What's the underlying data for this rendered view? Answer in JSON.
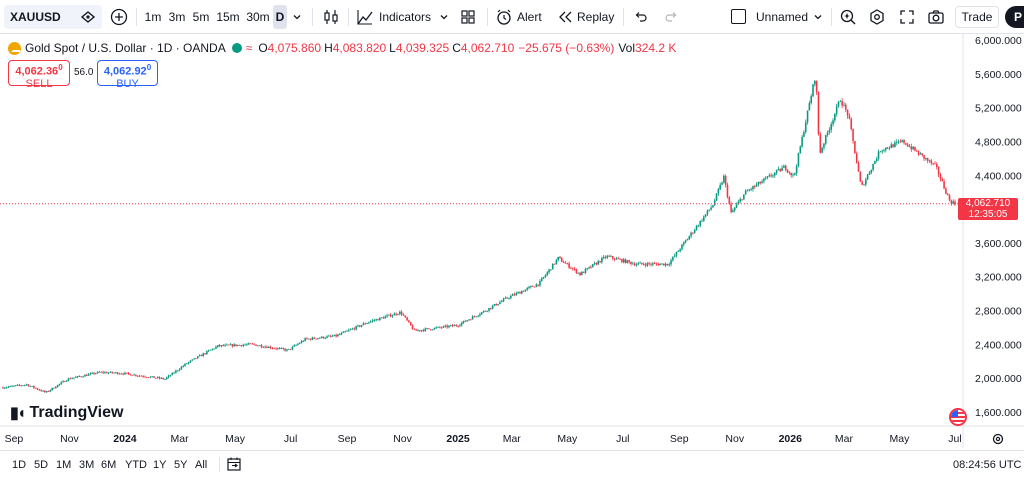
{
  "toolbar": {
    "symbol": "XAUUSD",
    "intervals": [
      "1m",
      "3m",
      "5m",
      "15m",
      "30m",
      "D"
    ],
    "active_interval": "D",
    "indicators_label": "Indicators",
    "alert_label": "Alert",
    "replay_label": "Replay",
    "layout_name": "Unnamed",
    "trade_label": "Trade",
    "publish_label": "P"
  },
  "legend": {
    "title": "Gold Spot / U.S. Dollar · 1D · OANDA",
    "wave": "≈",
    "open_label": "O",
    "open": "4,075.860",
    "high_label": "H",
    "high": "4,083.820",
    "low_label": "L",
    "low": "4,039.325",
    "close_label": "C",
    "close": "4,062.710",
    "change": "−25.675 (−0.63%)",
    "vol_label": "Vol",
    "vol": "324.2 K"
  },
  "trade": {
    "sell_price": "4,062.36",
    "sell_sup": "0",
    "sell_label": "SELL",
    "spread": "56.0",
    "buy_price": "4,062.92",
    "buy_sup": "0",
    "buy_label": "BUY"
  },
  "price_axis": {
    "labels": [
      "6,000.000",
      "5,600.000",
      "5,200.000",
      "4,800.000",
      "4,400.000",
      "3,600.000",
      "3,200.000",
      "2,800.000",
      "2,400.000",
      "2,000.000",
      "1,600.000"
    ],
    "current_price": "4,062.710",
    "countdown": "12:35:05"
  },
  "time_axis": {
    "labels": [
      "Sep",
      "Nov",
      "2024",
      "Mar",
      "May",
      "Jul",
      "Sep",
      "Nov",
      "2025",
      "Mar",
      "May",
      "Jul",
      "Sep",
      "Nov",
      "2026",
      "Mar",
      "May",
      "Jul"
    ]
  },
  "brand": "TradingView",
  "bottom": {
    "ranges": [
      "1D",
      "5D",
      "1M",
      "3M",
      "6M",
      "YTD",
      "1Y",
      "5Y",
      "All"
    ],
    "clock": "08:24:56 UTC"
  },
  "colors": {
    "up": "#089981",
    "down": "#f23645",
    "accent": "#2962ff"
  },
  "chart_data": {
    "type": "line",
    "x": [
      "2023-08-20",
      "2023-09-15",
      "2023-10-06",
      "2023-10-30",
      "2023-12-04",
      "2023-12-28",
      "2024-02-14",
      "2024-03-08",
      "2024-04-12",
      "2024-05-20",
      "2024-06-28",
      "2024-07-17",
      "2024-08-20",
      "2024-09-26",
      "2024-10-30",
      "2024-11-14",
      "2024-12-31",
      "2025-01-31",
      "2025-02-24",
      "2025-03-31",
      "2025-04-21",
      "2025-05-15",
      "2025-06-13",
      "2025-07-15",
      "2025-08-20",
      "2025-09-10",
      "2025-10-08",
      "2025-10-20",
      "2025-10-28",
      "2025-11-13",
      "2025-12-26",
      "2026-01-05",
      "2026-01-29",
      "2026-02-02",
      "2026-02-25",
      "2026-03-06",
      "2026-03-20",
      "2026-04-10",
      "2026-05-05",
      "2026-06-10",
      "2026-06-25",
      "2026-07-01"
    ],
    "values": [
      1890,
      1925,
      1830,
      1990,
      2070,
      2060,
      1990,
      2170,
      2380,
      2400,
      2330,
      2460,
      2500,
      2670,
      2780,
      2560,
      2625,
      2800,
      2950,
      3120,
      3420,
      3230,
      3440,
      3350,
      3350,
      3650,
      4050,
      4380,
      3950,
      4200,
      4500,
      4380,
      5600,
      4650,
      5300,
      5100,
      4250,
      4700,
      4800,
      4500,
      4100,
      4062.71
    ],
    "ylim": [
      1500,
      6100
    ]
  }
}
